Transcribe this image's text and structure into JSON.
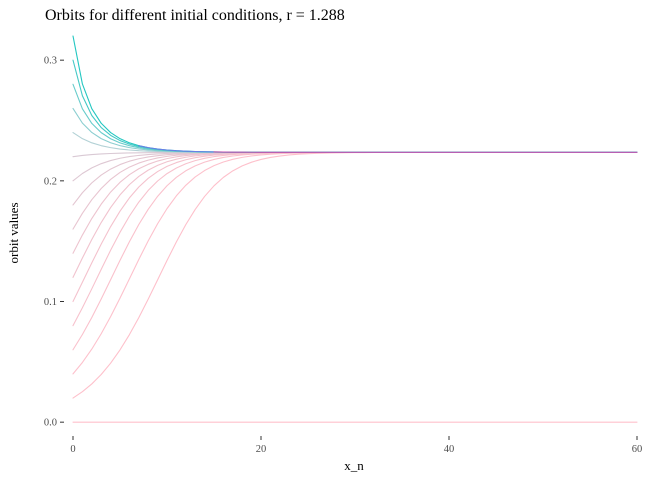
{
  "chart_data": {
    "type": "line",
    "title": "Orbits for different initial conditions, r = 1.288",
    "xlabel": "x_n",
    "ylabel": "orbit values",
    "map": "logistic",
    "r": 1.288,
    "n_steps": 60,
    "x_ticks": [
      0,
      20,
      40,
      60
    ],
    "x_tick_labels": [
      "0",
      "20",
      "40",
      "60"
    ],
    "y_ticks": [
      0.0,
      0.1,
      0.2,
      0.3
    ],
    "y_tick_labels": [
      "0.0",
      "0.1",
      "0.2",
      "0.3"
    ],
    "xlim": [
      0,
      60
    ],
    "ylim": [
      -0.004,
      0.325
    ],
    "grid": false,
    "legend": "none",
    "initial_conditions": [
      0.0,
      0.02,
      0.04,
      0.06,
      0.08,
      0.1,
      0.12,
      0.14,
      0.16,
      0.18,
      0.2,
      0.22,
      0.24,
      0.26,
      0.28,
      0.3,
      0.32
    ],
    "colors": {
      "low_start": "#ffc0cb",
      "high_start": "#23c7c1",
      "converged_overlay": "#6a7ee6",
      "fixed_point": "#cc4fb0"
    }
  }
}
